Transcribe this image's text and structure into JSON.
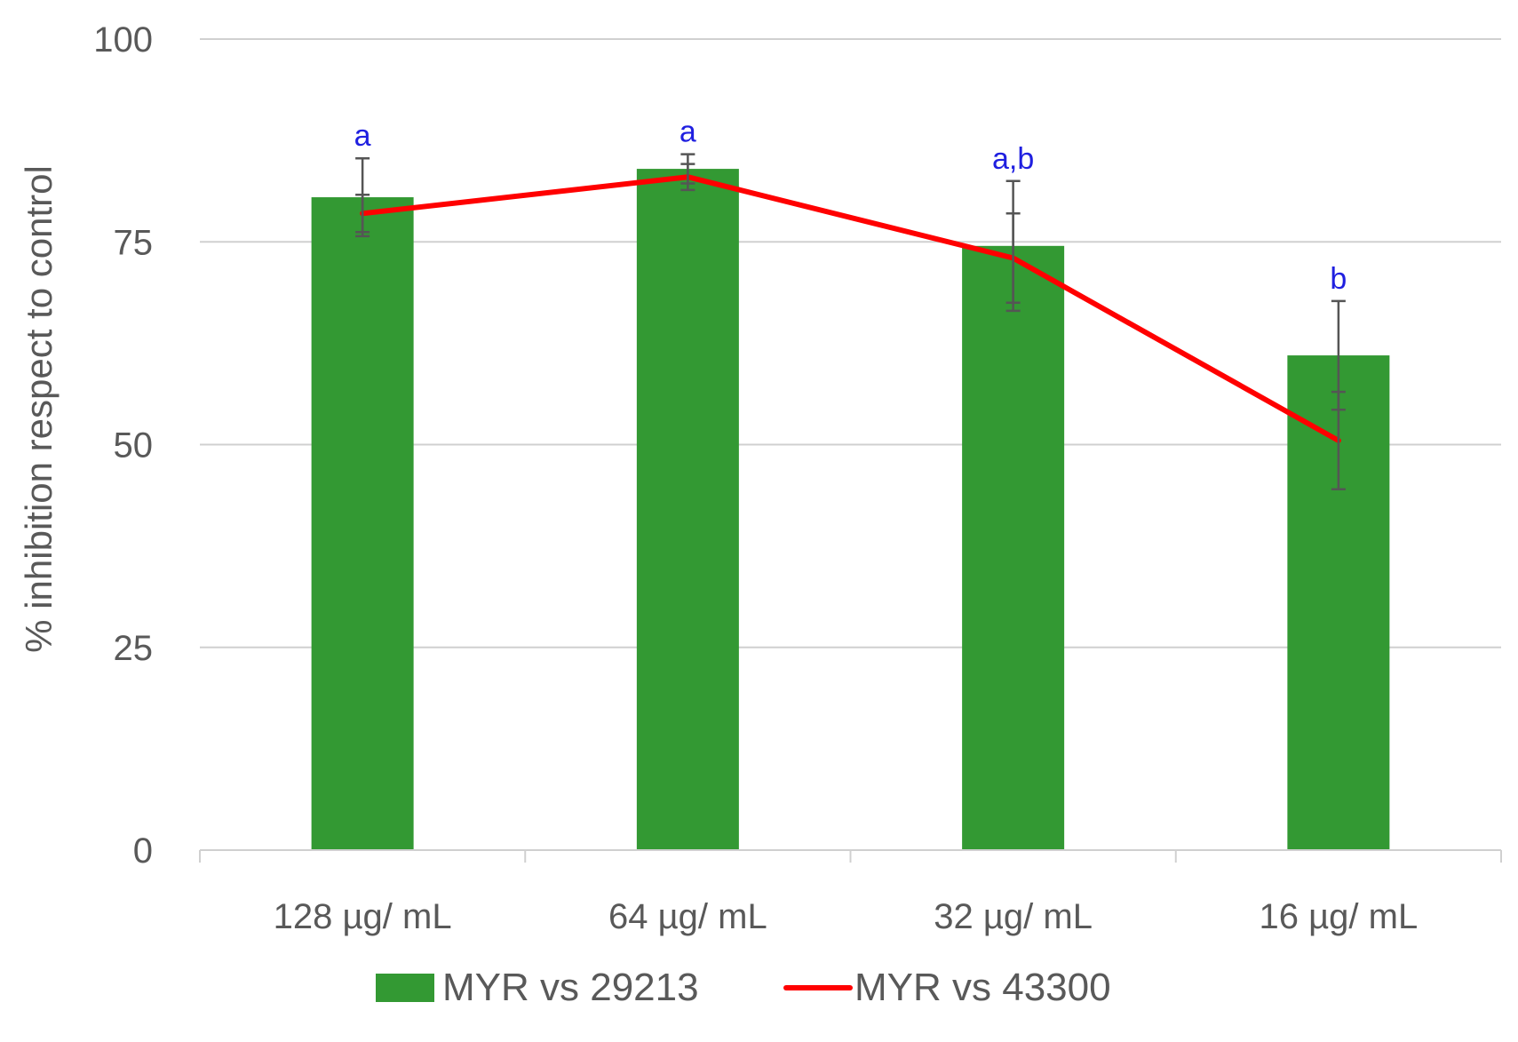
{
  "chart_data": {
    "type": "bar",
    "categories": [
      "128 µg/ mL",
      "64 µg/ mL",
      "32 µg/ mL",
      "16 µg/ mL"
    ],
    "series": [
      {
        "name": "MYR vs 29213",
        "type": "bar",
        "color": "#339933",
        "values": [
          80.5,
          84,
          74.5,
          61
        ],
        "error": [
          4.8,
          1.8,
          8,
          6.7
        ]
      },
      {
        "name": "MYR vs 43300",
        "type": "line",
        "color": "#ff0000",
        "values": [
          78.5,
          83,
          73,
          50.5
        ],
        "error": [
          2.3,
          1.6,
          5.5,
          6
        ]
      }
    ],
    "letters": [
      "a",
      "a",
      "a,b",
      "b"
    ],
    "xlabel": "",
    "ylabel": "% inhibition respect to control",
    "ylim": [
      0,
      100
    ],
    "yticks": [
      0,
      25,
      50,
      75,
      100
    ],
    "grid": true,
    "legend_position": "bottom"
  }
}
